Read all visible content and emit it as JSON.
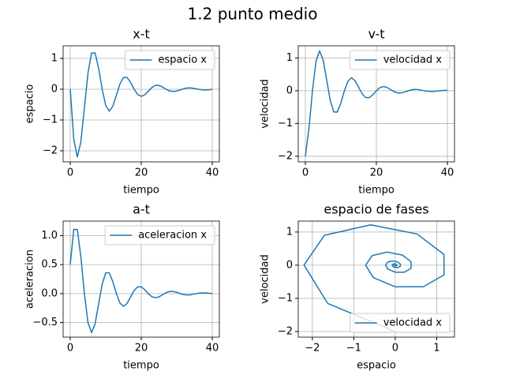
{
  "title": "1.2 punto medio",
  "chart_data": [
    {
      "type": "line",
      "title": "x-t",
      "xlabel": "tiempo",
      "ylabel": "espacio",
      "x": [
        0,
        1,
        2,
        3,
        4,
        5,
        6,
        7,
        8,
        9,
        10,
        11,
        12,
        13,
        14,
        15,
        16,
        17,
        18,
        19,
        20,
        21,
        22,
        23,
        24,
        25,
        26,
        27,
        28,
        29,
        30,
        31,
        32,
        33,
        34,
        35,
        36,
        37,
        38,
        39,
        40
      ],
      "series": [
        {
          "name": "espacio x",
          "color": "#1f77b4",
          "values": [
            0,
            -1.629,
            -2.201,
            -1.709,
            -0.595,
            0.525,
            1.174,
            1.179,
            0.679,
            0,
            -0.529,
            -0.715,
            -0.554,
            -0.193,
            0.171,
            0.381,
            0.382,
            0.221,
            0,
            -0.172,
            -0.232,
            -0.18,
            -0.063,
            0.055,
            0.124,
            0.124,
            0.071,
            0,
            -0.056,
            -0.075,
            -0.058,
            -0.02,
            0.018,
            0.04,
            0.04,
            0.023,
            0,
            -0.018,
            -0.025,
            -0.019,
            -0.006
          ]
        }
      ],
      "xlim": [
        -2,
        42
      ],
      "ylim": [
        -2.36,
        1.41
      ],
      "xticks": [
        0,
        20,
        40
      ],
      "yticks": [
        {
          "value": -2,
          "label": "−2"
        },
        {
          "value": -1,
          "label": "−1"
        },
        0,
        1
      ],
      "grid": true,
      "legend": "upper right"
    },
    {
      "type": "line",
      "title": "v-t",
      "xlabel": "tiempo",
      "ylabel": "velocidad",
      "x": [
        0,
        1,
        2,
        3,
        4,
        5,
        6,
        7,
        8,
        9,
        10,
        11,
        12,
        13,
        14,
        15,
        16,
        17,
        18,
        19,
        20,
        21,
        22,
        23,
        24,
        25,
        26,
        27,
        28,
        29,
        30,
        31,
        32,
        33,
        34,
        35,
        36,
        37,
        38,
        39,
        40
      ],
      "series": [
        {
          "name": "velocidad x",
          "color": "#1f77b4",
          "values": [
            -2.003,
            -1.153,
            0.004,
            0.902,
            1.217,
            0.942,
            0.327,
            -0.292,
            -0.649,
            -0.651,
            -0.374,
            0.001,
            0.292,
            0.395,
            0.306,
            0.106,
            -0.095,
            -0.211,
            -0.211,
            -0.121,
            0,
            0.095,
            0.128,
            0.099,
            0.034,
            -0.031,
            -0.068,
            -0.068,
            -0.04,
            0,
            0.031,
            0.041,
            0.032,
            0.011,
            -0.01,
            -0.022,
            -0.022,
            -0.013,
            0,
            0.01,
            0.013
          ]
        }
      ],
      "xlim": [
        -2,
        42
      ],
      "ylim": [
        -2.17,
        1.37
      ],
      "xticks": [
        0,
        20,
        40
      ],
      "yticks": [
        {
          "value": -2,
          "label": "−2"
        },
        {
          "value": -1,
          "label": "−1"
        },
        0,
        1
      ],
      "grid": true,
      "legend": "upper right"
    },
    {
      "type": "line",
      "title": "a-t",
      "xlabel": "tiempo",
      "ylabel": "aceleracion",
      "x": [
        0,
        1,
        2,
        3,
        4,
        5,
        6,
        7,
        8,
        9,
        10,
        11,
        12,
        13,
        14,
        15,
        16,
        17,
        18,
        19,
        20,
        21,
        22,
        23,
        24,
        25,
        26,
        27,
        28,
        29,
        30,
        31,
        32,
        33,
        34,
        35,
        36,
        37,
        38,
        39,
        40
      ],
      "series": [
        {
          "name": "aceleracion x",
          "color": "#1f77b4",
          "values": [
            0.501,
            1.107,
            1.106,
            0.633,
            -0.005,
            -0.499,
            -0.671,
            -0.521,
            -0.178,
            0.163,
            0.359,
            0.359,
            0.205,
            -0.002,
            -0.162,
            -0.218,
            -0.169,
            -0.058,
            0.053,
            0.117,
            0.117,
            0.067,
            -0.001,
            -0.053,
            -0.071,
            -0.055,
            -0.019,
            0.017,
            0.038,
            0.038,
            0.022,
            0,
            -0.017,
            -0.023,
            -0.018,
            -0.006,
            0.006,
            0.012,
            0.012,
            0.007,
            0
          ]
        }
      ],
      "xlim": [
        -2,
        42
      ],
      "ylim": [
        -0.75,
        1.25
      ],
      "xticks": [
        0,
        20,
        40
      ],
      "yticks": [
        {
          "value": -0.5,
          "label": "−0.5"
        },
        {
          "value": 0,
          "label": "0.0"
        },
        {
          "value": 0.5,
          "label": "0.5"
        },
        {
          "value": 1,
          "label": "1.0"
        }
      ],
      "grid": true,
      "legend": "upper right"
    },
    {
      "type": "line",
      "title": "espacio de fases",
      "xlabel": "espacio",
      "ylabel": "velocidad",
      "x": [
        0,
        -1.629,
        -2.201,
        -1.709,
        -0.595,
        0.525,
        1.174,
        1.179,
        0.679,
        0,
        -0.529,
        -0.715,
        -0.554,
        -0.193,
        0.171,
        0.381,
        0.382,
        0.221,
        0,
        -0.172,
        -0.232,
        -0.18,
        -0.063,
        0.055,
        0.124,
        0.124,
        0.071,
        0,
        -0.056,
        -0.075,
        -0.058,
        -0.02,
        0.018,
        0.04,
        0.04,
        0.023,
        0,
        -0.018,
        -0.025,
        -0.019,
        -0.006
      ],
      "series": [
        {
          "name": "velocidad x",
          "color": "#1f77b4",
          "values": [
            -2.003,
            -1.153,
            0.004,
            0.902,
            1.217,
            0.942,
            0.327,
            -0.292,
            -0.649,
            -0.651,
            -0.374,
            0.001,
            0.292,
            0.395,
            0.306,
            0.106,
            -0.095,
            -0.211,
            -0.211,
            -0.121,
            0,
            0.095,
            0.128,
            0.099,
            0.034,
            -0.031,
            -0.068,
            -0.068,
            -0.04,
            0,
            0.031,
            0.041,
            0.032,
            0.011,
            -0.01,
            -0.022,
            -0.022,
            -0.013,
            0,
            0.01,
            0.013
          ]
        }
      ],
      "xlim": [
        -2.34,
        1.43
      ],
      "ylim": [
        -2.17,
        1.33
      ],
      "xticks": [
        {
          "value": -2,
          "label": "−2"
        },
        {
          "value": -1,
          "label": "−1"
        },
        0,
        1
      ],
      "yticks": [
        {
          "value": -2,
          "label": "−2"
        },
        {
          "value": -1,
          "label": "−1"
        },
        0,
        1
      ],
      "grid": true,
      "legend": "lower right"
    }
  ]
}
